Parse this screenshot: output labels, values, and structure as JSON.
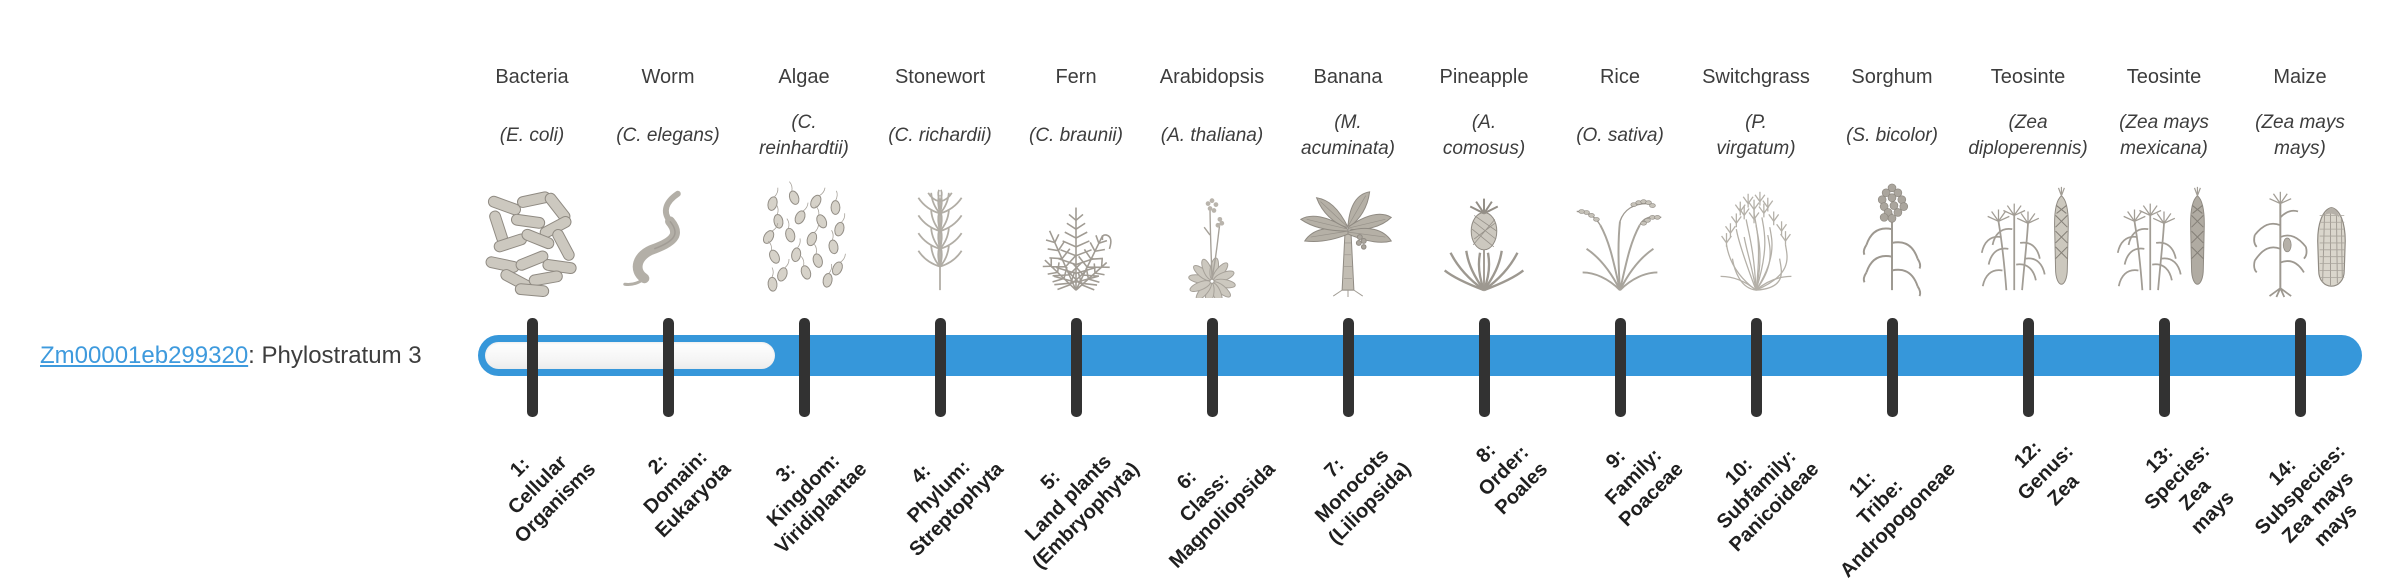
{
  "gene": {
    "id": "Zm00001eb299320",
    "suffix": ": Phylostratum 3",
    "phylostratum": 3
  },
  "colors": {
    "bar": "#3697da",
    "track": "#fbfbfb",
    "tick": "#323232",
    "link": "#3e9add",
    "text": "#3d3d3d",
    "ticklabel": "#1f1f1f"
  },
  "timeline": {
    "num_strata": 14,
    "filled_from_stratum": 3
  },
  "strata": [
    {
      "number": 1,
      "organism": "Bacteria",
      "species_lines": [
        "(E. coli)"
      ],
      "rank_lines": [
        "1:",
        "Cellular",
        "Organisms"
      ],
      "icon": "bacteria-icon",
      "filled": false
    },
    {
      "number": 2,
      "organism": "Worm",
      "species_lines": [
        "(C. elegans)"
      ],
      "rank_lines": [
        "2:",
        "Domain:",
        "Eukaryota"
      ],
      "icon": "worm-icon",
      "filled": false
    },
    {
      "number": 3,
      "organism": "Algae",
      "species_lines": [
        "(C.",
        "reinhardtii)"
      ],
      "rank_lines": [
        "3:",
        "Kingdom:",
        "Viridiplantae"
      ],
      "icon": "algae-icon",
      "filled": true
    },
    {
      "number": 4,
      "organism": "Stonewort",
      "species_lines": [
        "(C. richardii)"
      ],
      "rank_lines": [
        "4:",
        "Phylum:",
        "Streptophyta"
      ],
      "icon": "stonewort-icon",
      "filled": true
    },
    {
      "number": 5,
      "organism": "Fern",
      "species_lines": [
        "(C. braunii)"
      ],
      "rank_lines": [
        "5:",
        "Land plants",
        "(Embryophyta)"
      ],
      "icon": "fern-icon",
      "filled": true
    },
    {
      "number": 6,
      "organism": "Arabidopsis",
      "species_lines": [
        "(A. thaliana)"
      ],
      "rank_lines": [
        "6:",
        "Class:",
        "Magnoliopsida"
      ],
      "icon": "arabidopsis-icon",
      "filled": true
    },
    {
      "number": 7,
      "organism": "Banana",
      "species_lines": [
        "(M.",
        "acuminata)"
      ],
      "rank_lines": [
        "7:",
        "Monocots",
        "(Liliopsida)"
      ],
      "icon": "banana-icon",
      "filled": true
    },
    {
      "number": 8,
      "organism": "Pineapple",
      "species_lines": [
        "(A.",
        "comosus)"
      ],
      "rank_lines": [
        "8:",
        "Order:",
        "Poales"
      ],
      "icon": "pineapple-icon",
      "filled": true
    },
    {
      "number": 9,
      "organism": "Rice",
      "species_lines": [
        "(O. sativa)"
      ],
      "rank_lines": [
        "9:",
        "Family:",
        "Poaceae"
      ],
      "icon": "rice-icon",
      "filled": true
    },
    {
      "number": 10,
      "organism": "Switchgrass",
      "species_lines": [
        "(P.",
        "virgatum)"
      ],
      "rank_lines": [
        "10:",
        "Subfamily:",
        "Panicoideae"
      ],
      "icon": "switchgrass-icon",
      "filled": true
    },
    {
      "number": 11,
      "organism": "Sorghum",
      "species_lines": [
        "(S. bicolor)"
      ],
      "rank_lines": [
        "11:",
        "Tribe:",
        "Andropogoneae"
      ],
      "icon": "sorghum-icon",
      "filled": true
    },
    {
      "number": 12,
      "organism": "Teosinte",
      "species_lines": [
        "(Zea",
        "diploperennis)"
      ],
      "rank_lines": [
        "12:",
        "Genus:",
        "Zea"
      ],
      "icon": "teosinte-diplo-icon",
      "filled": true
    },
    {
      "number": 13,
      "organism": "Teosinte",
      "species_lines": [
        "(Zea mays",
        "mexicana)"
      ],
      "rank_lines": [
        "13:",
        "Species:",
        "Zea",
        "mays"
      ],
      "icon": "teosinte-mexicana-icon",
      "filled": true
    },
    {
      "number": 14,
      "organism": "Maize",
      "species_lines": [
        "(Zea mays",
        "mays)"
      ],
      "rank_lines": [
        "14:",
        "Subspecies:",
        "Zea mays",
        "mays"
      ],
      "icon": "maize-icon",
      "filled": true
    }
  ],
  "chart_data": {
    "type": "bar",
    "orientation": "horizontal",
    "title": "Zm00001eb299320: Phylostratum 3",
    "series": [
      {
        "name": "Zm00001eb299320",
        "phylostratum": 3,
        "bar_span_strata": [
          1,
          14
        ],
        "unfilled_span_strata": [
          1,
          2
        ],
        "filled_span_strata": [
          3,
          14
        ]
      }
    ],
    "categories": [
      "1: Cellular Organisms",
      "2: Domain: Eukaryota",
      "3: Kingdom: Viridiplantae",
      "4: Phylum: Streptophyta",
      "5: Land plants (Embryophyta)",
      "6: Class: Magnoliopsida",
      "7: Monocots (Liliopsida)",
      "8: Order: Poales",
      "9: Family: Poaceae",
      "10: Subfamily: Panicoideae",
      "11: Tribe: Andropogoneae",
      "12: Genus: Zea",
      "13: Species: Zea mays",
      "14: Subspecies: Zea mays mays"
    ],
    "top_axis_labels": [
      "Bacteria (E. coli)",
      "Worm (C. elegans)",
      "Algae (C. reinhardtii)",
      "Stonewort (C. richardii)",
      "Fern (C. braunii)",
      "Arabidopsis (A. thaliana)",
      "Banana (M. acuminata)",
      "Pineapple (A. comosus)",
      "Rice (O. sativa)",
      "Switchgrass (P. virgatum)",
      "Sorghum (S. bicolor)",
      "Teosinte (Zea diploperennis)",
      "Teosinte (Zea mays mexicana)",
      "Maize (Zea mays mays)"
    ],
    "legend": "none",
    "grid": false
  }
}
